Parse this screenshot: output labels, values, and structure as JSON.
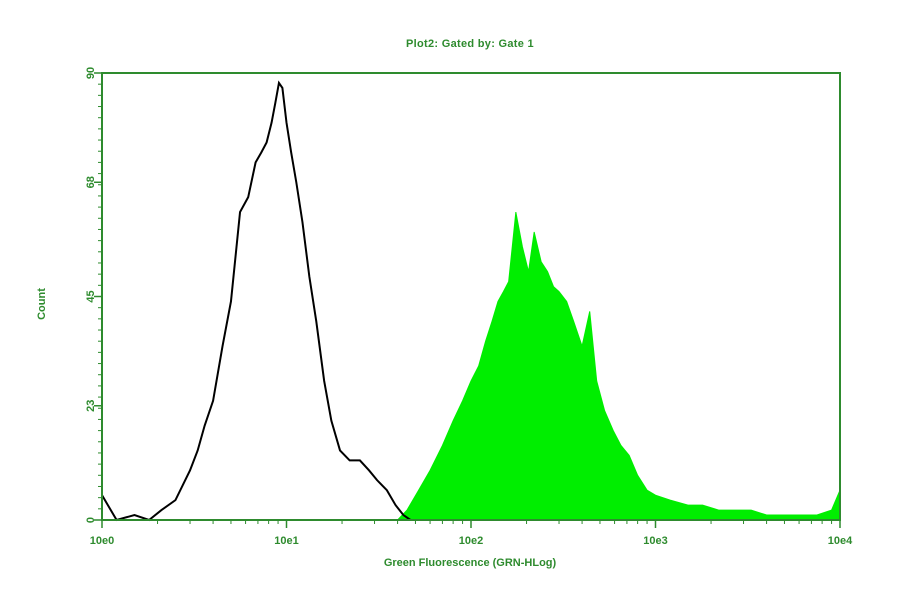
{
  "chart_data": {
    "type": "area",
    "title": "Plot2:  Gated by: Gate 1",
    "xlabel": "Green Fluorescence (GRN-HLog)",
    "ylabel": "Count",
    "xscale": "log",
    "xlim": [
      1,
      10000
    ],
    "ylim": [
      0,
      90
    ],
    "xticks": [
      1,
      10,
      100,
      1000,
      10000
    ],
    "xtick_labels": [
      "10e0",
      "10e1",
      "10e2",
      "10e3",
      "10e4"
    ],
    "yticks": [
      0,
      23,
      45,
      68,
      90
    ],
    "ytick_labels": [
      "0",
      "23",
      "45",
      "68",
      "90"
    ],
    "grid": false,
    "colors": {
      "axis": "#2e8b2e",
      "control": "#000000",
      "stained": "#00ee00"
    },
    "series": [
      {
        "style": "outline",
        "color": "#000000",
        "x": [
          1.0,
          1.2,
          1.5,
          1.8,
          2.1,
          2.5,
          3.0,
          3.3,
          3.6,
          4.0,
          4.5,
          5.0,
          5.6,
          6.2,
          6.8,
          7.3,
          7.8,
          8.3,
          8.7,
          9.1,
          9.5,
          10.0,
          10.6,
          11.3,
          12.2,
          13.3,
          14.5,
          16.0,
          17.5,
          19.5,
          22.0,
          25.0,
          28.0,
          31.0,
          35.0,
          39.0,
          43.0,
          47.0,
          52.0,
          60.0
        ],
        "y": [
          5,
          0,
          1,
          0,
          2,
          4,
          10,
          14,
          19,
          24,
          35,
          44,
          62,
          65,
          72,
          74,
          76,
          80,
          84,
          88,
          87,
          80,
          74,
          68,
          60,
          49,
          40,
          28,
          20,
          14,
          12,
          12,
          10,
          8,
          6,
          3,
          1,
          0,
          0,
          0
        ]
      },
      {
        "style": "filled",
        "color": "#00ee00",
        "x": [
          40,
          45,
          52,
          60,
          70,
          80,
          90,
          100,
          110,
          120,
          130,
          140,
          150,
          160,
          175,
          190,
          205,
          220,
          240,
          260,
          280,
          300,
          330,
          360,
          400,
          440,
          480,
          530,
          590,
          650,
          720,
          800,
          900,
          1000,
          1200,
          1500,
          1800,
          2200,
          2700,
          3300,
          4000,
          5000,
          6000,
          7500,
          9000,
          10000
        ],
        "y": [
          0,
          2,
          6,
          10,
          15,
          20,
          24,
          28,
          31,
          36,
          40,
          44,
          46,
          48,
          62,
          55,
          50,
          58,
          52,
          50,
          47,
          46,
          44,
          40,
          35,
          42,
          28,
          22,
          18,
          15,
          13,
          9,
          6,
          5,
          4,
          3,
          3,
          2,
          2,
          2,
          1,
          1,
          1,
          1,
          2,
          6
        ]
      }
    ]
  }
}
